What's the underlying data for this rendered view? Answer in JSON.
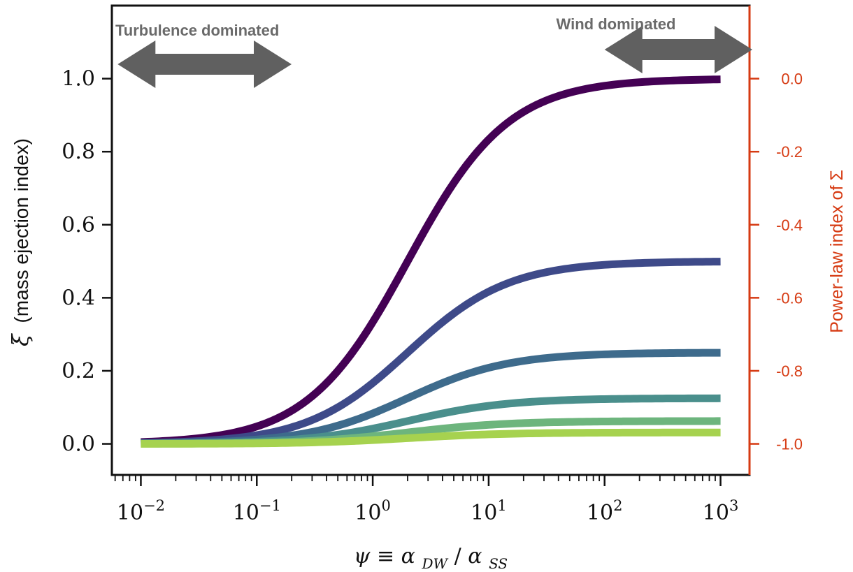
{
  "chart_data": {
    "type": "line",
    "xscale": "log",
    "xlim_exp": [
      -2.25,
      3.25
    ],
    "ylim": [
      -0.085,
      1.2
    ],
    "x_tick_exponents": [
      -2,
      -1,
      0,
      1,
      2,
      3
    ],
    "x_tick_labels": [
      "10",
      "10",
      "10",
      "10",
      "10",
      "10"
    ],
    "x_tick_superscripts": [
      "−2",
      "−1",
      "0",
      "1",
      "2",
      "3"
    ],
    "y_ticks": [
      0.0,
      0.2,
      0.4,
      0.6,
      0.8,
      1.0
    ],
    "y_tick_labels": [
      "0.0",
      "0.2",
      "0.4",
      "0.6",
      "0.8",
      "1.0"
    ],
    "y2_ticks": [
      0.0,
      -0.2,
      -0.4,
      -0.6,
      -0.8,
      -1.0
    ],
    "y2_tick_labels": [
      "0.0",
      "-0.2",
      "-0.4",
      "-0.6",
      "-0.8",
      "-1.0"
    ],
    "y2_mapping": "power_law_index = xi - 1",
    "ylabel_symbol": "ξ",
    "ylabel_text": "(mass ejection index)",
    "y2label_text": "Power-law index of Σ",
    "xlabel_psi": "ψ",
    "xlabel_equiv": " ≡ ",
    "xlabel_alpha1": "α",
    "xlabel_sub1": "DW",
    "xlabel_slash": "/",
    "xlabel_alpha2": "α",
    "xlabel_sub2": "SS",
    "model": "xi = xi_max * psi / (psi + 2)",
    "x_range_exp": [
      -2,
      3
    ],
    "series": [
      {
        "name": "xi_max = 1",
        "xi_max": 1.0,
        "color": "#440154"
      },
      {
        "name": "xi_max = 0.5",
        "xi_max": 0.5,
        "color": "#3e4a89"
      },
      {
        "name": "xi_max = 0.25",
        "xi_max": 0.25,
        "color": "#3e6b8c"
      },
      {
        "name": "xi_max = 0.125",
        "xi_max": 0.125,
        "color": "#4a8f8c"
      },
      {
        "name": "xi_max = 0.0625",
        "xi_max": 0.0625,
        "color": "#6db57d"
      },
      {
        "name": "xi_max = 0.03125",
        "xi_max": 0.03125,
        "color": "#a6d24f"
      }
    ],
    "annotations": [
      {
        "text": "Turbulence dominated",
        "arrow_exp_range": [
          -2.2,
          -0.7
        ]
      },
      {
        "text": "Wind dominated",
        "arrow_exp_range": [
          2.0,
          3.25
        ]
      }
    ],
    "colors": {
      "axis": "#111111",
      "right_axis": "#d63a12",
      "arrow": "#606060",
      "annotation_text": "#6a6a6a"
    }
  }
}
